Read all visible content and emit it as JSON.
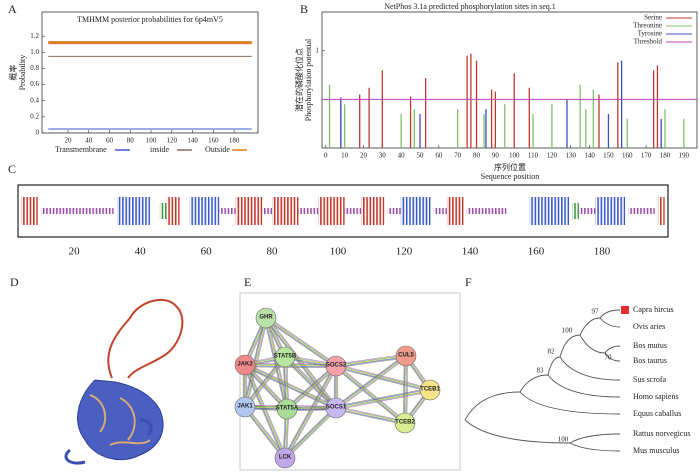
{
  "panel_labels": [
    "A",
    "B",
    "C",
    "D",
    "E",
    "F"
  ],
  "chart_data": [
    {
      "type": "line",
      "title": "TMHMM posterior probabilities for 6p4mV5",
      "ylabel": [
        "概率",
        "Probability"
      ],
      "x": [
        1,
        197
      ],
      "series": [
        {
          "name": "Transmembrane",
          "color": "#3b5bd6",
          "values": [
            0.05,
            0.05
          ]
        },
        {
          "name": "inside",
          "color": "#8a6a5a",
          "values": [
            0.95,
            0.95
          ]
        },
        {
          "name": "Outside",
          "color": "#e07a1f",
          "values": [
            1.12,
            1.12
          ]
        }
      ],
      "xlim": [
        -5,
        203
      ],
      "ylim": [
        0,
        1.5
      ],
      "xticks": [
        20,
        40,
        60,
        80,
        100,
        120,
        140,
        160,
        180
      ],
      "yticks": [
        0,
        0.2,
        0.4,
        0.6,
        0.8,
        {
          "value": 1,
          "label": "1.0"
        },
        1.2
      ]
    },
    {
      "type": "bar",
      "title": "NetPhos 3.1a predicted phosphorylation sites in seq.1",
      "ylabel": [
        "潜在的磷酸化位点",
        "Phosphorylation potential"
      ],
      "xlabel": [
        "序列位置",
        "Sequence position"
      ],
      "series": [
        {
          "name": "Serine",
          "color": "#c0392b",
          "x": [
            8,
            18,
            23,
            30,
            45,
            53,
            75,
            77,
            80,
            88,
            90,
            100,
            108,
            145,
            155,
            174,
            176
          ],
          "values": [
            0.5,
            0.55,
            0.62,
            0.8,
            0.53,
            0.72,
            0.95,
            0.97,
            0.9,
            0.6,
            0.58,
            0.77,
            0.62,
            0.55,
            0.88,
            0.8,
            0.85
          ]
        },
        {
          "name": "Threonine",
          "color": "#7fbf6a",
          "x": [
            2,
            10,
            40,
            47,
            70,
            84,
            95,
            110,
            120,
            135,
            138,
            142,
            160,
            180,
            190
          ],
          "values": [
            0.65,
            0.45,
            0.35,
            0.4,
            0.4,
            0.35,
            0.45,
            0.35,
            0.45,
            0.65,
            0.4,
            0.6,
            0.3,
            0.4,
            0.3
          ]
        },
        {
          "name": "Tyrosine",
          "color": "#3b4fc4",
          "x": [
            8,
            50,
            85,
            128,
            150,
            157,
            178
          ],
          "values": [
            0.52,
            0.35,
            0.4,
            0.5,
            0.35,
            0.9,
            0.3
          ]
        }
      ],
      "threshold": {
        "name": "Threshold",
        "color": "#c040c0",
        "value": 0.5
      },
      "xlim": [
        -2,
        197
      ],
      "ylim": [
        0,
        1.4
      ],
      "xticks": [
        0,
        10,
        20,
        30,
        40,
        50,
        60,
        70,
        80,
        90,
        100,
        110,
        120,
        130,
        140,
        150,
        160,
        170,
        180,
        190
      ],
      "yticks": [
        1
      ]
    },
    {
      "type": "track",
      "xlim": [
        3,
        200
      ],
      "xticks": [
        20,
        40,
        60,
        80,
        100,
        120,
        140,
        160,
        180
      ],
      "segments": [
        {
          "start": 4,
          "end": 9,
          "color": "#c0392b"
        },
        {
          "start": 10,
          "end": 32,
          "color": "#9b4fa8"
        },
        {
          "start": 33,
          "end": 43,
          "color": "#3b5bc4"
        },
        {
          "start": 46,
          "end": 48,
          "color": "#3c9a3c"
        },
        {
          "start": 48,
          "end": 52,
          "color": "#c0392b"
        },
        {
          "start": 55,
          "end": 64,
          "color": "#3b5bc4"
        },
        {
          "start": 64,
          "end": 69,
          "color": "#9b4fa8"
        },
        {
          "start": 69,
          "end": 77,
          "color": "#c0392b"
        },
        {
          "start": 77,
          "end": 80,
          "color": "#9b4fa8"
        },
        {
          "start": 80,
          "end": 88,
          "color": "#c0392b"
        },
        {
          "start": 88,
          "end": 94,
          "color": "#9b4fa8"
        },
        {
          "start": 94,
          "end": 102,
          "color": "#c0392b"
        },
        {
          "start": 102,
          "end": 107,
          "color": "#9b4fa8"
        },
        {
          "start": 107,
          "end": 114,
          "color": "#c0392b"
        },
        {
          "start": 115,
          "end": 119,
          "color": "#9b4fa8"
        },
        {
          "start": 119,
          "end": 128,
          "color": "#3b5bc4"
        },
        {
          "start": 129,
          "end": 133,
          "color": "#9b4fa8"
        },
        {
          "start": 133,
          "end": 138,
          "color": "#c0392b"
        },
        {
          "start": 139,
          "end": 151,
          "color": "#9b4fa8"
        },
        {
          "start": 158,
          "end": 170,
          "color": "#3b5bc4"
        },
        {
          "start": 171,
          "end": 173,
          "color": "#3c9a3c"
        },
        {
          "start": 173,
          "end": 178,
          "color": "#9b4fa8"
        },
        {
          "start": 178,
          "end": 187,
          "color": "#3b5bc4"
        },
        {
          "start": 188,
          "end": 196,
          "color": "#9b4fa8"
        },
        {
          "start": 197,
          "end": 199,
          "color": "#c0392b"
        }
      ]
    }
  ],
  "network": {
    "nodes": [
      {
        "label": "GHR",
        "color": "#b8e0a8"
      },
      {
        "label": "JAK2",
        "color": "#f08a8a"
      },
      {
        "label": "STAT5B",
        "color": "#b8e6a0"
      },
      {
        "label": "SOCS2",
        "color": "#f4a0a8"
      },
      {
        "label": "CUL5",
        "color": "#f09a8a"
      },
      {
        "label": "TCEB1",
        "color": "#f4e48a"
      },
      {
        "label": "JAK1",
        "color": "#b0c8f0"
      },
      {
        "label": "STAT5A",
        "color": "#a8dc98"
      },
      {
        "label": "SOCS1",
        "color": "#c8b8f0"
      },
      {
        "label": "TCEB2",
        "color": "#d8ec90"
      },
      {
        "label": "LCK",
        "color": "#c0a8e8"
      }
    ]
  },
  "tree": {
    "leaves": [
      "Capra hircus",
      "Ovis aries",
      "Bos mutus",
      "Bos taurus",
      "Sus scrofa",
      "Homo sapiens",
      "Equus caballus",
      "Rattus norvegicus",
      "Mus musculus"
    ],
    "bootstrap": [
      "97",
      "100",
      "70",
      "82",
      "83",
      "100"
    ]
  }
}
